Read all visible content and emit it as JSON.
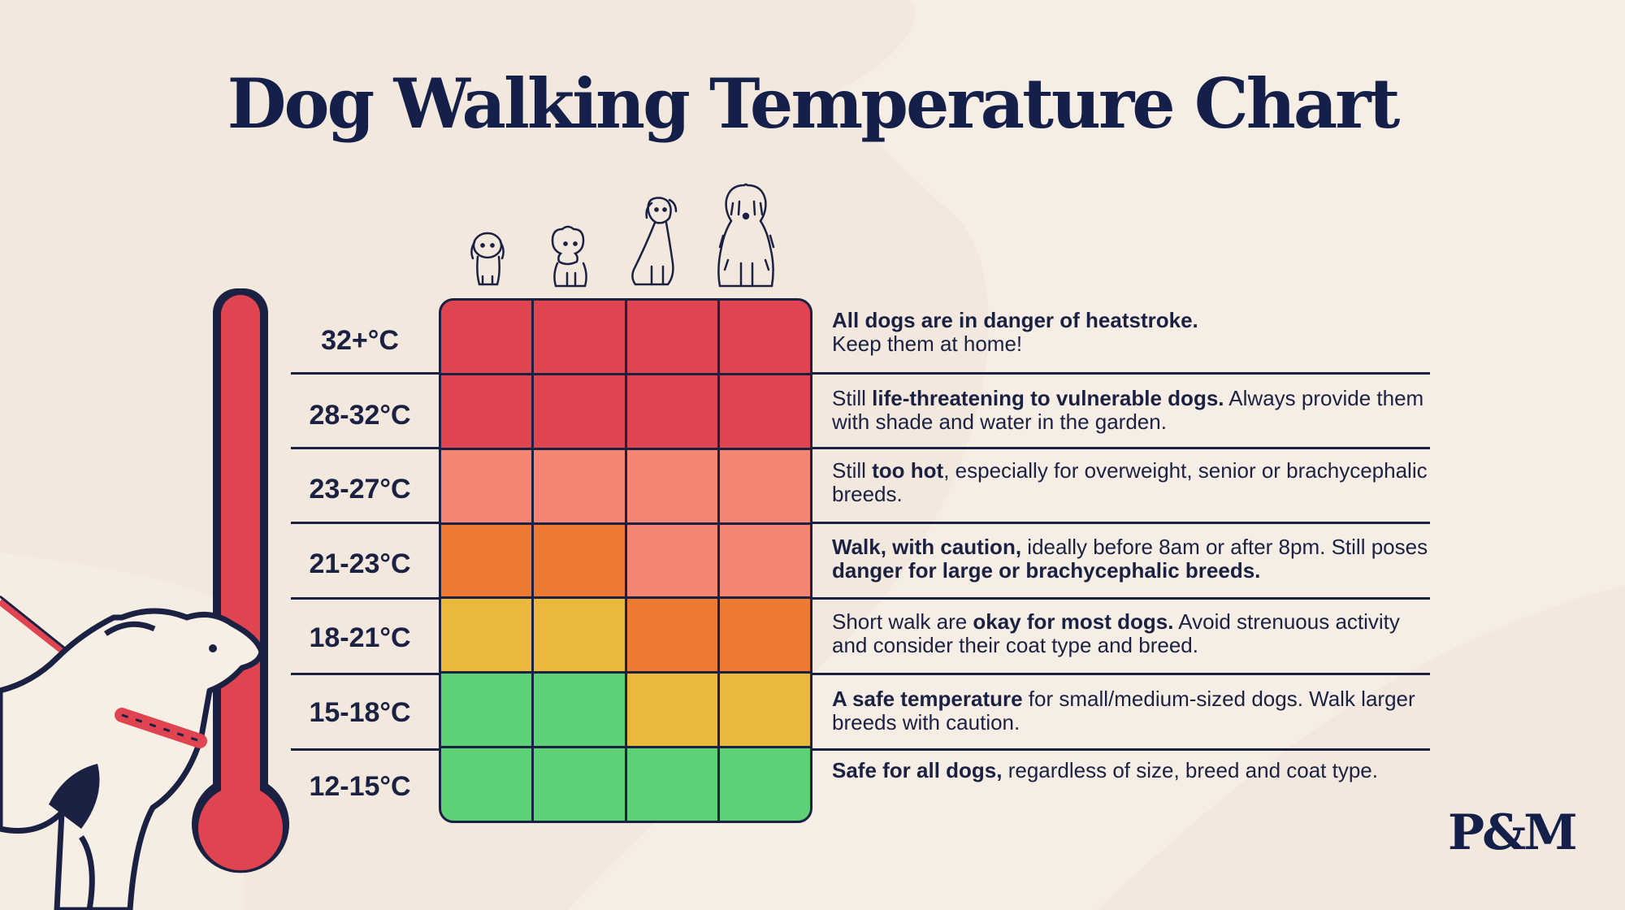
{
  "title": "Dog Walking Temperature Chart",
  "logo": "P&M",
  "dog_icons": [
    "small-dog-icon",
    "poodle-dog-icon",
    "medium-dog-icon",
    "large-shaggy-dog-icon"
  ],
  "colors": {
    "danger": "#e04451",
    "hot": "#f48572",
    "caution": "#ec7a33",
    "moderate": "#ebb83e",
    "safe": "#5dd175",
    "navy": "#1a2142"
  },
  "rows": [
    {
      "temp": "32+°C",
      "cells": [
        "danger",
        "danger",
        "danger",
        "danger"
      ],
      "desc": [
        {
          "t": "All dogs are in danger of heatstroke.",
          "b": true
        },
        {
          "br": true
        },
        {
          "t": "Keep them at home!",
          "b": false
        }
      ]
    },
    {
      "temp": "28-32°C",
      "cells": [
        "danger",
        "danger",
        "danger",
        "danger"
      ],
      "desc": [
        {
          "t": "Still ",
          "b": false
        },
        {
          "t": "life-threatening to vulnerable dogs.",
          "b": true
        },
        {
          "t": " Always provide them with shade and water in the garden.",
          "b": false
        }
      ]
    },
    {
      "temp": "23-27°C",
      "cells": [
        "hot",
        "hot",
        "hot",
        "hot"
      ],
      "desc": [
        {
          "t": "Still ",
          "b": false
        },
        {
          "t": "too hot",
          "b": true
        },
        {
          "t": ", especially for overweight, senior or brachycephalic breeds.",
          "b": false
        }
      ]
    },
    {
      "temp": "21-23°C",
      "cells": [
        "caution",
        "caution",
        "hot",
        "hot"
      ],
      "desc": [
        {
          "t": "Walk, with caution,",
          "b": true
        },
        {
          "t": " ideally before 8am or after 8pm. Still poses ",
          "b": false
        },
        {
          "t": "danger for large or brachycephalic breeds.",
          "b": true
        }
      ]
    },
    {
      "temp": "18-21°C",
      "cells": [
        "moderate",
        "moderate",
        "caution",
        "caution"
      ],
      "desc": [
        {
          "t": "Short walk are ",
          "b": false
        },
        {
          "t": "okay for most dogs.",
          "b": true
        },
        {
          "t": " Avoid strenuous activity and consider their coat type and breed.",
          "b": false
        }
      ]
    },
    {
      "temp": "15-18°C",
      "cells": [
        "safe",
        "safe",
        "moderate",
        "moderate"
      ],
      "desc": [
        {
          "t": "A safe temperature",
          "b": true
        },
        {
          "t": " for small/medium-sized dogs. Walk larger breeds with caution.",
          "b": false
        }
      ]
    },
    {
      "temp": "12-15°C",
      "cells": [
        "safe",
        "safe",
        "safe",
        "safe"
      ],
      "desc": [
        {
          "t": "Safe for all dogs,",
          "b": true
        },
        {
          "t": " regardless of size, breed and coat type.",
          "b": false
        }
      ]
    }
  ]
}
